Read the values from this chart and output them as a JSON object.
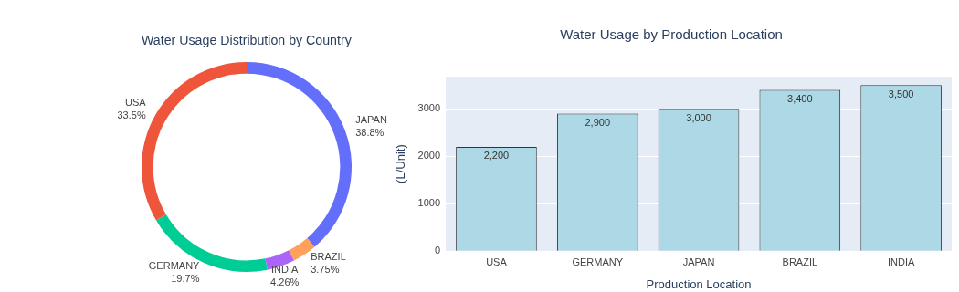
{
  "chart_data": [
    {
      "type": "donut",
      "title": "Water Usage Distribution by Country",
      "categories": [
        "JAPAN",
        "BRAZIL",
        "INDIA",
        "GERMANY",
        "USA"
      ],
      "values": [
        38.8,
        3.75,
        4.26,
        19.7,
        33.5
      ],
      "colors": [
        "#636efa",
        "#ffa15a",
        "#ab63fa",
        "#00cc96",
        "#ef553b"
      ],
      "value_labels": [
        "38.8%",
        "3.75%",
        "4.26%",
        "19.7%",
        "33.5%"
      ]
    },
    {
      "type": "bar",
      "title": "Water Usage by Production Location",
      "categories": [
        "USA",
        "GERMANY",
        "JAPAN",
        "BRAZIL",
        "INDIA"
      ],
      "values": [
        2200,
        2900,
        3000,
        3400,
        3500
      ],
      "color": "#add8e6",
      "value_labels": [
        "2,200",
        "2,900",
        "3,000",
        "3,400",
        "3,500"
      ],
      "xlabel": "Production Location",
      "ylabel": "(L/Unit)",
      "ylim": [
        0,
        3680
      ],
      "yticks": [
        0,
        1000,
        2000,
        3000
      ],
      "grid": "y"
    }
  ]
}
